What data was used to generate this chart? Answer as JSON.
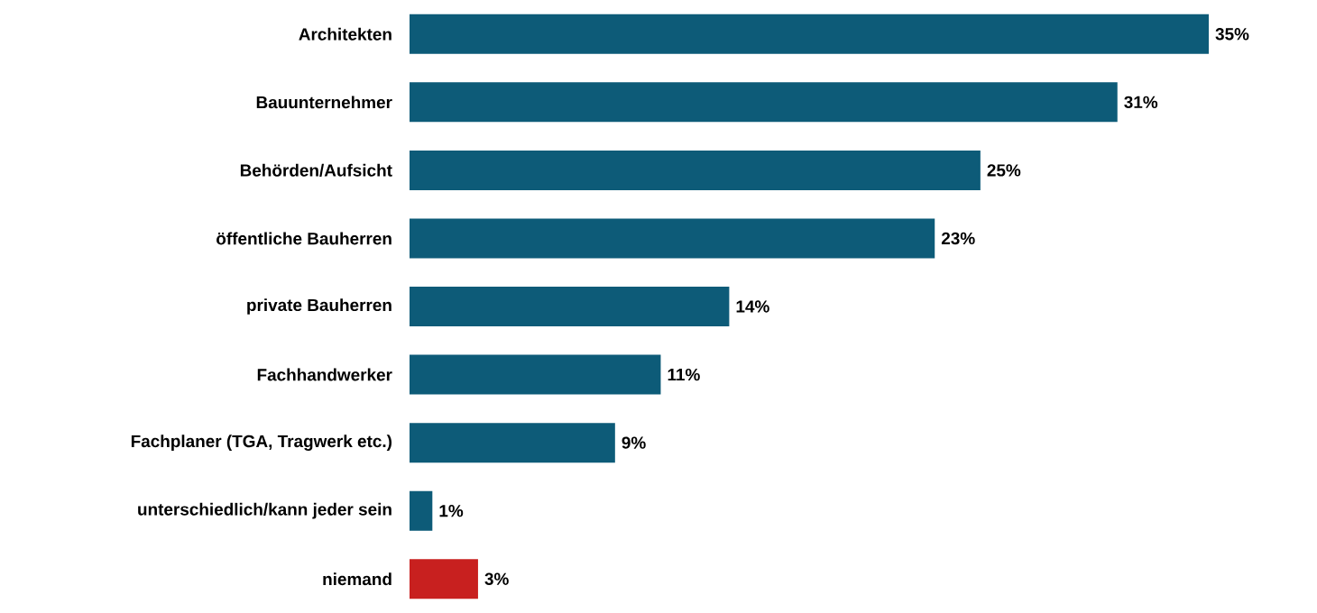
{
  "chart_data": {
    "type": "bar",
    "orientation": "horizontal",
    "categories": [
      "Architekten",
      "Bauunternehmer",
      "Behörden/Aufsicht",
      "öffentliche Bauherren",
      "private Bauherren",
      "Fachhandwerker",
      "Fachplaner (TGA, Tragwerk etc.)",
      "unterschiedlich/kann jeder sein",
      "niemand"
    ],
    "values": [
      35,
      31,
      25,
      23,
      14,
      11,
      9,
      1,
      3
    ],
    "value_labels": [
      "35%",
      "31%",
      "25%",
      "23%",
      "14%",
      "11%",
      "9%",
      "1%",
      "3%"
    ],
    "colors": [
      "#0d5b78",
      "#0d5b78",
      "#0d5b78",
      "#0d5b78",
      "#0d5b78",
      "#0d5b78",
      "#0d5b78",
      "#0d5b78",
      "#c8201f"
    ],
    "tick_labels": "y"
  }
}
